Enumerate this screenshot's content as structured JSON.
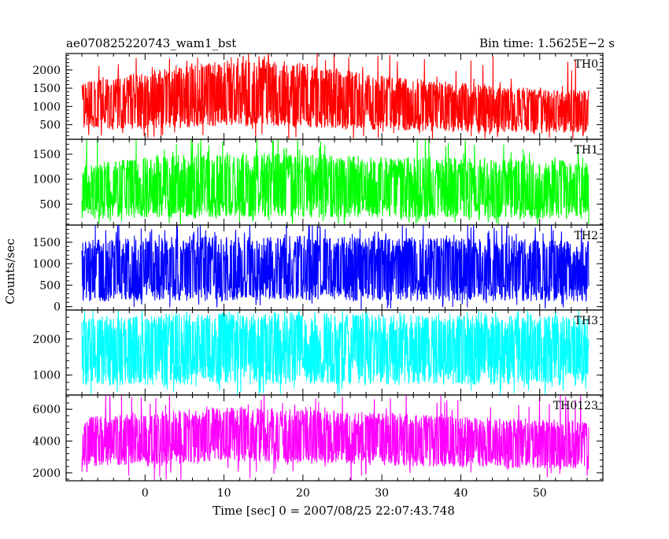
{
  "header": {
    "left_title": "ae070825220743_wam1_bst",
    "right_title": "Bin time: 1.5625E−2 s"
  },
  "chart_data": {
    "type": "line",
    "xlabel": "Time [sec] 0 = 2007/08/25 22:07:43.748",
    "ylabel": "Counts/sec",
    "xlim": [
      -10,
      58
    ],
    "x_ticks": [
      0,
      10,
      20,
      30,
      40,
      50
    ],
    "x_tick_labels": [
      "0",
      "10",
      "20",
      "30",
      "40",
      "50"
    ],
    "data_x_range": [
      -8,
      56.2
    ],
    "grid": false,
    "series": [
      {
        "name": "TH0",
        "color": "#ff0000",
        "ylim": [
          100,
          2450
        ],
        "y_ticks": [
          500,
          1000,
          1500,
          2000
        ],
        "y_tick_labels": [
          "500",
          "1000",
          "1500",
          "2000"
        ],
        "envelope": {
          "x": [
            -8,
            0,
            5,
            10,
            15,
            20,
            25,
            30,
            35,
            40,
            45,
            50,
            56
          ],
          "high": [
            1650,
            1950,
            2150,
            2300,
            2300,
            2200,
            2000,
            1850,
            1750,
            1650,
            1550,
            1500,
            1450
          ],
          "mean": [
            1050,
            1150,
            1200,
            1280,
            1250,
            1180,
            1080,
            1020,
            980,
            930,
            880,
            850,
            820
          ],
          "low": [
            350,
            380,
            400,
            450,
            450,
            420,
            380,
            350,
            320,
            300,
            280,
            270,
            260
          ]
        }
      },
      {
        "name": "TH1",
        "color": "#00ff00",
        "ylim": [
          80,
          1800
        ],
        "y_ticks": [
          500,
          1000,
          1500
        ],
        "y_tick_labels": [
          "500",
          "1000",
          "1500"
        ],
        "envelope": {
          "x": [
            -8,
            0,
            10,
            20,
            30,
            40,
            50,
            56
          ],
          "high": [
            1300,
            1450,
            1550,
            1500,
            1450,
            1450,
            1400,
            1350
          ],
          "mean": [
            700,
            760,
            800,
            800,
            780,
            770,
            760,
            740
          ],
          "low": [
            200,
            220,
            240,
            230,
            220,
            220,
            210,
            200
          ]
        }
      },
      {
        "name": "TH2",
        "color": "#0000ff",
        "ylim": [
          -80,
          1900
        ],
        "y_ticks": [
          0,
          500,
          1000,
          1500
        ],
        "y_tick_labels": [
          "0",
          "500",
          "1000",
          "1500"
        ],
        "envelope": {
          "x": [
            -8,
            0,
            10,
            20,
            30,
            40,
            50,
            56
          ],
          "high": [
            1550,
            1600,
            1650,
            1650,
            1600,
            1600,
            1550,
            1550
          ],
          "mean": [
            820,
            850,
            860,
            860,
            850,
            840,
            830,
            820
          ],
          "low": [
            120,
            130,
            140,
            140,
            130,
            130,
            120,
            120
          ]
        }
      },
      {
        "name": "TH3",
        "color": "#00ffff",
        "ylim": [
          450,
          2800
        ],
        "y_ticks": [
          1000,
          2000
        ],
        "y_tick_labels": [
          "1000",
          "2000"
        ],
        "envelope": {
          "x": [
            -8,
            0,
            10,
            20,
            30,
            40,
            50,
            56
          ],
          "high": [
            2550,
            2650,
            2700,
            2700,
            2700,
            2650,
            2650,
            2600
          ],
          "mean": [
            1650,
            1700,
            1720,
            1720,
            1700,
            1700,
            1690,
            1680
          ],
          "low": [
            700,
            720,
            740,
            740,
            730,
            720,
            720,
            710
          ]
        }
      },
      {
        "name": "TH0123",
        "color": "#ff00ff",
        "ylim": [
          1500,
          6900
        ],
        "y_ticks": [
          2000,
          4000,
          6000
        ],
        "y_tick_labels": [
          "2000",
          "4000",
          "6000"
        ],
        "envelope": {
          "x": [
            -8,
            0,
            5,
            10,
            15,
            20,
            25,
            30,
            35,
            40,
            45,
            50,
            56
          ],
          "high": [
            5500,
            5800,
            6000,
            6100,
            6100,
            6000,
            5900,
            5800,
            5650,
            5550,
            5450,
            5350,
            5250
          ],
          "mean": [
            3900,
            4100,
            4200,
            4300,
            4250,
            4200,
            4100,
            4000,
            3900,
            3800,
            3700,
            3650,
            3600
          ],
          "low": [
            2400,
            2500,
            2600,
            2700,
            2650,
            2600,
            2550,
            2450,
            2400,
            2350,
            2300,
            2250,
            2200
          ]
        }
      }
    ]
  }
}
